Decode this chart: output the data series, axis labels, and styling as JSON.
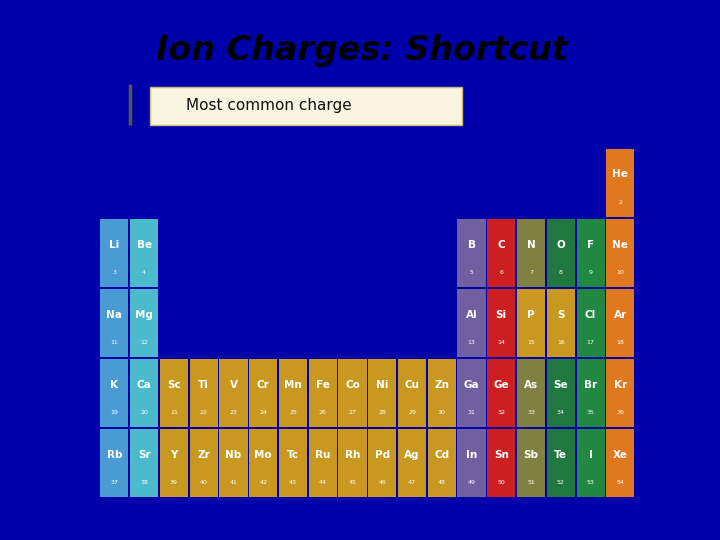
{
  "title": "Ion Charges: Shortcut",
  "subtitle": "Most common charge",
  "bg_outer": "#0000AA",
  "bg_slide": "#FFFFFF",
  "title_color": "#000000",
  "subtitle_box_facecolor": "#F8F4E0",
  "subtitle_box_edgecolor": "#C8B870",
  "elements": [
    {
      "sym": "He",
      "num": 2,
      "col": 17,
      "row": 0,
      "color": "#E07820"
    },
    {
      "sym": "Li",
      "num": 3,
      "col": 0,
      "row": 1,
      "color": "#4A9AD4"
    },
    {
      "sym": "Be",
      "num": 4,
      "col": 1,
      "row": 1,
      "color": "#4ABACC"
    },
    {
      "sym": "B",
      "num": 5,
      "col": 12,
      "row": 1,
      "color": "#7060A0"
    },
    {
      "sym": "C",
      "num": 6,
      "col": 13,
      "row": 1,
      "color": "#CC2020"
    },
    {
      "sym": "N",
      "num": 7,
      "col": 14,
      "row": 1,
      "color": "#808040"
    },
    {
      "sym": "O",
      "num": 8,
      "col": 15,
      "row": 1,
      "color": "#207840"
    },
    {
      "sym": "F",
      "num": 9,
      "col": 16,
      "row": 1,
      "color": "#208840"
    },
    {
      "sym": "Ne",
      "num": 10,
      "col": 17,
      "row": 1,
      "color": "#E07820"
    },
    {
      "sym": "Na",
      "num": 11,
      "col": 0,
      "row": 2,
      "color": "#4A9AD4"
    },
    {
      "sym": "Mg",
      "num": 12,
      "col": 1,
      "row": 2,
      "color": "#4ABACC"
    },
    {
      "sym": "Al",
      "num": 13,
      "col": 12,
      "row": 2,
      "color": "#7060A0"
    },
    {
      "sym": "Si",
      "num": 14,
      "col": 13,
      "row": 2,
      "color": "#CC2020"
    },
    {
      "sym": "P",
      "num": 15,
      "col": 14,
      "row": 2,
      "color": "#C89820"
    },
    {
      "sym": "S",
      "num": 16,
      "col": 15,
      "row": 2,
      "color": "#C89820"
    },
    {
      "sym": "Cl",
      "num": 17,
      "col": 16,
      "row": 2,
      "color": "#208840"
    },
    {
      "sym": "Ar",
      "num": 18,
      "col": 17,
      "row": 2,
      "color": "#E07820"
    },
    {
      "sym": "K",
      "num": 19,
      "col": 0,
      "row": 3,
      "color": "#4A9AD4"
    },
    {
      "sym": "Ca",
      "num": 20,
      "col": 1,
      "row": 3,
      "color": "#4ABACC"
    },
    {
      "sym": "Sc",
      "num": 21,
      "col": 2,
      "row": 3,
      "color": "#C89820"
    },
    {
      "sym": "Ti",
      "num": 22,
      "col": 3,
      "row": 3,
      "color": "#C89820"
    },
    {
      "sym": "V",
      "num": 23,
      "col": 4,
      "row": 3,
      "color": "#C89820"
    },
    {
      "sym": "Cr",
      "num": 24,
      "col": 5,
      "row": 3,
      "color": "#C89820"
    },
    {
      "sym": "Mn",
      "num": 25,
      "col": 6,
      "row": 3,
      "color": "#C89820"
    },
    {
      "sym": "Fe",
      "num": 26,
      "col": 7,
      "row": 3,
      "color": "#C89820"
    },
    {
      "sym": "Co",
      "num": 27,
      "col": 8,
      "row": 3,
      "color": "#C89820"
    },
    {
      "sym": "Ni",
      "num": 28,
      "col": 9,
      "row": 3,
      "color": "#C89820"
    },
    {
      "sym": "Cu",
      "num": 29,
      "col": 10,
      "row": 3,
      "color": "#C89820"
    },
    {
      "sym": "Zn",
      "num": 30,
      "col": 11,
      "row": 3,
      "color": "#C89820"
    },
    {
      "sym": "Ga",
      "num": 31,
      "col": 12,
      "row": 3,
      "color": "#7060A0"
    },
    {
      "sym": "Ge",
      "num": 32,
      "col": 13,
      "row": 3,
      "color": "#CC2020"
    },
    {
      "sym": "As",
      "num": 33,
      "col": 14,
      "row": 3,
      "color": "#808040"
    },
    {
      "sym": "Se",
      "num": 34,
      "col": 15,
      "row": 3,
      "color": "#207840"
    },
    {
      "sym": "Br",
      "num": 35,
      "col": 16,
      "row": 3,
      "color": "#208840"
    },
    {
      "sym": "Kr",
      "num": 36,
      "col": 17,
      "row": 3,
      "color": "#E07820"
    },
    {
      "sym": "Rb",
      "num": 37,
      "col": 0,
      "row": 4,
      "color": "#4A9AD4"
    },
    {
      "sym": "Sr",
      "num": 38,
      "col": 1,
      "row": 4,
      "color": "#4ABACC"
    },
    {
      "sym": "Y",
      "num": 39,
      "col": 2,
      "row": 4,
      "color": "#C89820"
    },
    {
      "sym": "Zr",
      "num": 40,
      "col": 3,
      "row": 4,
      "color": "#C89820"
    },
    {
      "sym": "Nb",
      "num": 41,
      "col": 4,
      "row": 4,
      "color": "#C89820"
    },
    {
      "sym": "Mo",
      "num": 42,
      "col": 5,
      "row": 4,
      "color": "#C89820"
    },
    {
      "sym": "Tc",
      "num": 43,
      "col": 6,
      "row": 4,
      "color": "#C89820"
    },
    {
      "sym": "Ru",
      "num": 44,
      "col": 7,
      "row": 4,
      "color": "#C89820"
    },
    {
      "sym": "Rh",
      "num": 45,
      "col": 8,
      "row": 4,
      "color": "#C89820"
    },
    {
      "sym": "Pd",
      "num": 46,
      "col": 9,
      "row": 4,
      "color": "#C89820"
    },
    {
      "sym": "Ag",
      "num": 47,
      "col": 10,
      "row": 4,
      "color": "#C89820"
    },
    {
      "sym": "Cd",
      "num": 48,
      "col": 11,
      "row": 4,
      "color": "#C89820"
    },
    {
      "sym": "In",
      "num": 49,
      "col": 12,
      "row": 4,
      "color": "#7060A0"
    },
    {
      "sym": "Sn",
      "num": 50,
      "col": 13,
      "row": 4,
      "color": "#CC2020"
    },
    {
      "sym": "Sb",
      "num": 51,
      "col": 14,
      "row": 4,
      "color": "#808040"
    },
    {
      "sym": "Te",
      "num": 52,
      "col": 15,
      "row": 4,
      "color": "#207840"
    },
    {
      "sym": "I",
      "num": 53,
      "col": 16,
      "row": 4,
      "color": "#208840"
    },
    {
      "sym": "Xe",
      "num": 54,
      "col": 17,
      "row": 4,
      "color": "#E07820"
    }
  ]
}
